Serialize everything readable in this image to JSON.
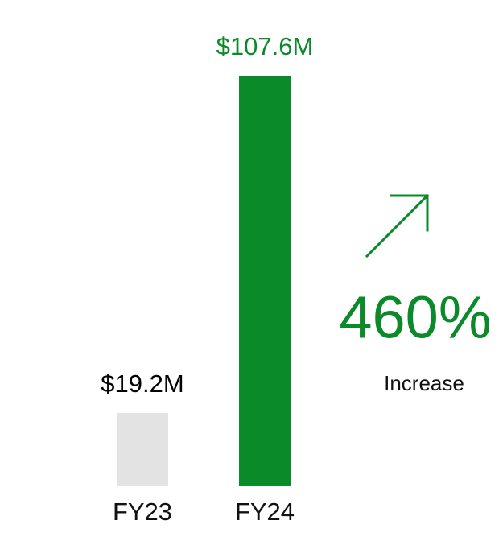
{
  "chart_data": {
    "type": "bar",
    "categories": [
      "FY23",
      "FY24"
    ],
    "values": [
      19.2,
      107.6
    ],
    "value_labels": [
      "$19.2M",
      "$107.6M"
    ],
    "colors": [
      "#e3e3e3",
      "#0a8a28"
    ],
    "label_colors": [
      "#000000",
      "#0a8a28"
    ],
    "annotation": {
      "text": "460%",
      "caption": "Increase",
      "color": "#0a8a28"
    }
  }
}
